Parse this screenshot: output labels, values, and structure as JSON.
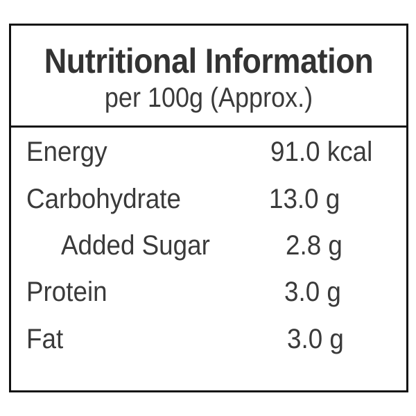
{
  "header": {
    "title": "Nutritional Information",
    "subtitle": "per 100g (Approx.)"
  },
  "table": {
    "rows": [
      [
        "Energy",
        "91.0 kcal"
      ],
      [
        "Carbohydrate",
        "13.0 g"
      ],
      [
        "Added Sugar",
        "2.8 g"
      ],
      [
        "Protein",
        "3.0 g"
      ],
      [
        "Fat",
        "3.0 g"
      ]
    ]
  }
}
